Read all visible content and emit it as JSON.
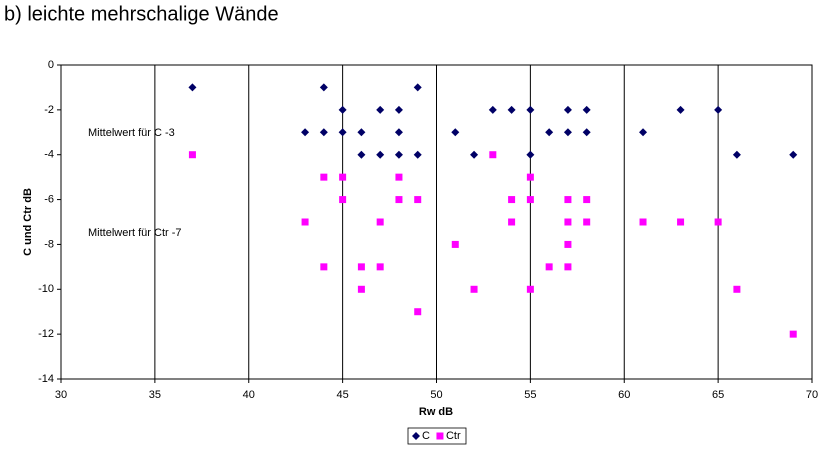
{
  "chart_data": {
    "type": "scatter",
    "title": "b) leichte mehrschalige Wände",
    "xlabel": "Rw  dB",
    "ylabel": "C und Ctr  dB",
    "annotations": [
      "Mittelwert für C  -3",
      "Mittelwert für Ctr  -7"
    ],
    "xlim": [
      30,
      70
    ],
    "xticks": [
      30,
      35,
      40,
      45,
      50,
      55,
      60,
      65,
      70
    ],
    "ylim": [
      -14,
      0
    ],
    "yticks": [
      0,
      -2,
      -4,
      -6,
      -8,
      -10,
      -12,
      -14
    ],
    "grid_x": true,
    "series": [
      {
        "name": "C",
        "color": "#000066",
        "marker": "diamond",
        "x": [
          37,
          44,
          49,
          45,
          47,
          48,
          53,
          54,
          55,
          57,
          58,
          63,
          65,
          43,
          44,
          45,
          46,
          48,
          51,
          56,
          57,
          58,
          61,
          46,
          47,
          48,
          49,
          52,
          55,
          66,
          69
        ],
        "values": [
          -1,
          -1,
          -1,
          -2,
          -2,
          -2,
          -2,
          -2,
          -2,
          -2,
          -2,
          -2,
          -2,
          -3,
          -3,
          -3,
          -3,
          -3,
          -3,
          -3,
          -3,
          -3,
          -3,
          -4,
          -4,
          -4,
          -4,
          -4,
          -4,
          -4,
          -4
        ]
      },
      {
        "name": "Ctr",
        "color": "#ff00ff",
        "marker": "square",
        "x": [
          37,
          53,
          44,
          45,
          48,
          55,
          45,
          48,
          49,
          54,
          55,
          57,
          58,
          43,
          47,
          54,
          57,
          58,
          61,
          63,
          65,
          51,
          57,
          44,
          46,
          47,
          56,
          57,
          46,
          52,
          55,
          66,
          49,
          69
        ],
        "values": [
          -4,
          -4,
          -5,
          -5,
          -5,
          -5,
          -6,
          -6,
          -6,
          -6,
          -6,
          -6,
          -6,
          -7,
          -7,
          -7,
          -7,
          -7,
          -7,
          -7,
          -7,
          -8,
          -8,
          -9,
          -9,
          -9,
          -9,
          -9,
          -10,
          -10,
          -10,
          -10,
          -11,
          -12
        ]
      }
    ]
  }
}
